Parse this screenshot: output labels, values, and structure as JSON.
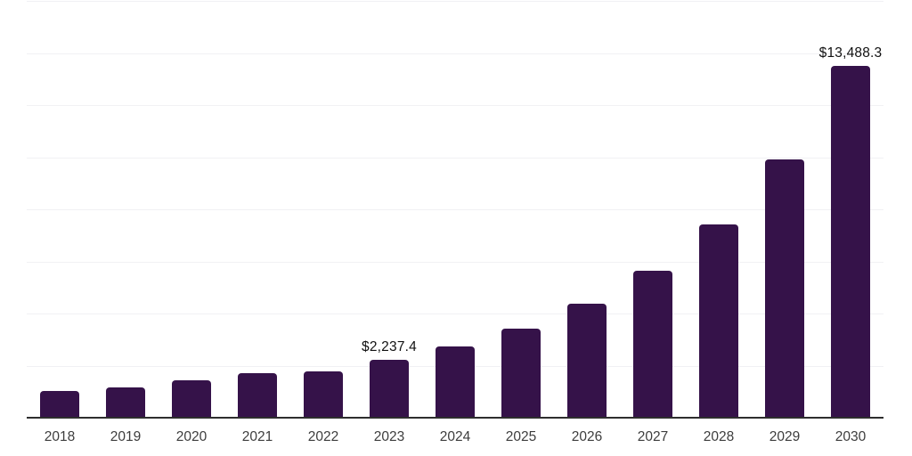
{
  "chart_data": {
    "type": "bar",
    "title": "",
    "xlabel": "",
    "ylabel": "",
    "categories": [
      "2018",
      "2019",
      "2020",
      "2021",
      "2022",
      "2023",
      "2024",
      "2025",
      "2026",
      "2027",
      "2028",
      "2029",
      "2030"
    ],
    "values": [
      1020,
      1160,
      1430,
      1705,
      1785,
      2237.4,
      2720,
      3410,
      4365,
      5655,
      7435,
      9900,
      13488.3
    ],
    "value_labels": {
      "2023": "$2,237.4",
      "2030": "$13,488.3"
    },
    "ylim": [
      0,
      16000
    ],
    "gridline_interval": 2000,
    "grid": true,
    "legend": false,
    "colors": {
      "bar": "#351249",
      "baseline": "#2e2e2e",
      "gridline": "#f1f1f4",
      "value_label": "#111111",
      "tick_label": "#3d3d3d",
      "background": "#ffffff"
    }
  }
}
